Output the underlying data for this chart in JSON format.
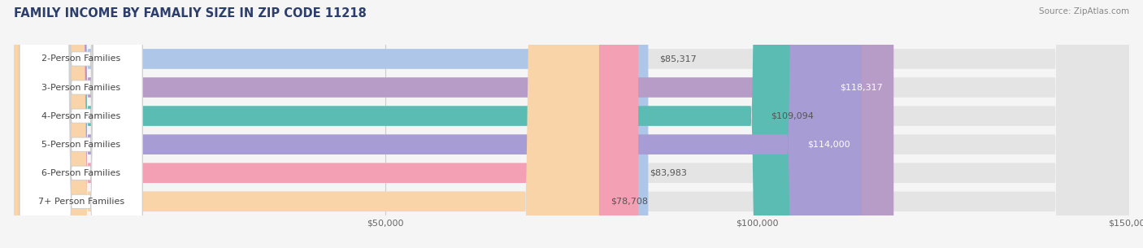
{
  "title": "FAMILY INCOME BY FAMALIY SIZE IN ZIP CODE 11218",
  "source": "Source: ZipAtlas.com",
  "categories": [
    "2-Person Families",
    "3-Person Families",
    "4-Person Families",
    "5-Person Families",
    "6-Person Families",
    "7+ Person Families"
  ],
  "values": [
    85317,
    118317,
    109094,
    114000,
    83983,
    78708
  ],
  "bar_colors": [
    "#aec6e8",
    "#b89cc8",
    "#5bbcb4",
    "#a89cd4",
    "#f4a0b4",
    "#f9d4a8"
  ],
  "label_colors": [
    "#555555",
    "#ffffff",
    "#555555",
    "#ffffff",
    "#555555",
    "#555555"
  ],
  "x_max": 150000,
  "background_color": "#f5f5f5",
  "bar_bg_color": "#e4e4e4",
  "title_color": "#2c3e6b",
  "source_color": "#888888",
  "label_fontsize": 8.0,
  "title_fontsize": 10.5,
  "bar_height": 0.7
}
